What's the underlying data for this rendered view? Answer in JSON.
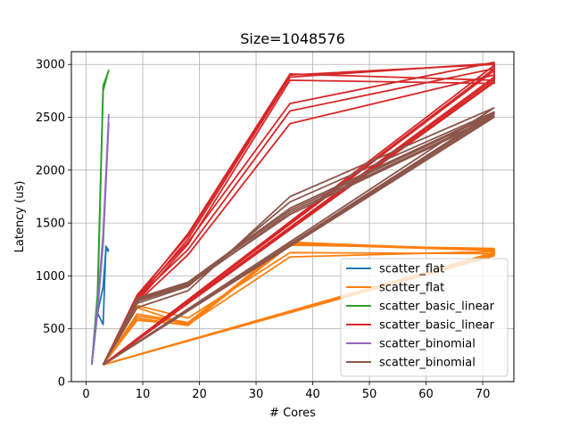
{
  "chart_data": {
    "type": "line",
    "title": "Size=1048576",
    "xlabel": "# Cores",
    "ylabel": "Latency (us)",
    "xlim": [
      -2.6,
      75.5
    ],
    "ylim": [
      0,
      3120
    ],
    "xticks": [
      0,
      10,
      20,
      30,
      40,
      50,
      60,
      70
    ],
    "yticks": [
      0,
      500,
      1000,
      1500,
      2000,
      2500,
      3000
    ],
    "grid": true,
    "legend_position": "lower-right",
    "series": [
      {
        "name": "scatter_flat",
        "color": "#1f77b4",
        "lines": [
          [
            [
              1,
              160
            ],
            [
              2,
              650
            ],
            [
              3,
              540
            ],
            [
              3.5,
              1280
            ],
            [
              4,
              1240
            ]
          ],
          [
            [
              1,
              170
            ],
            [
              2,
              640
            ],
            [
              3,
              900
            ],
            [
              3.5,
              1250
            ],
            [
              4,
              1230
            ]
          ]
        ]
      },
      {
        "name": "scatter_flat",
        "color": "#ff7f0e",
        "lines": [
          [
            [
              3,
              160
            ],
            [
              9,
              620
            ],
            [
              18,
              550
            ],
            [
              36,
              1320
            ],
            [
              72,
              1240
            ],
            [
              72,
              1220
            ],
            [
              3,
              160
            ]
          ],
          [
            [
              3,
              160
            ],
            [
              9,
              600
            ],
            [
              18,
              530
            ],
            [
              36,
              1310
            ],
            [
              72,
              1250
            ],
            [
              72,
              1210
            ],
            [
              3,
              160
            ]
          ],
          [
            [
              3,
              160
            ],
            [
              9,
              640
            ],
            [
              18,
              560
            ],
            [
              36,
              1300
            ],
            [
              72,
              1240
            ],
            [
              72,
              1200
            ],
            [
              3,
              160
            ]
          ],
          [
            [
              3,
              160
            ],
            [
              9,
              580
            ],
            [
              18,
              540
            ],
            [
              36,
              1290
            ],
            [
              72,
              1260
            ],
            [
              72,
              1220
            ],
            [
              3,
              160
            ]
          ],
          [
            [
              3,
              160
            ],
            [
              9,
              700
            ],
            [
              18,
              540
            ],
            [
              36,
              1180
            ],
            [
              72,
              1230
            ],
            [
              72,
              1210
            ],
            [
              3,
              160
            ]
          ],
          [
            [
              3,
              160
            ],
            [
              9,
              720
            ],
            [
              18,
              600
            ],
            [
              36,
              1220
            ],
            [
              72,
              1210
            ],
            [
              72,
              1190
            ],
            [
              3,
              160
            ]
          ]
        ]
      },
      {
        "name": "scatter_basic_linear",
        "color": "#2ca02c",
        "lines": [
          [
            [
              1,
              160
            ],
            [
              2,
              700
            ],
            [
              3,
              2750
            ],
            [
              4,
              2950
            ]
          ],
          [
            [
              1,
              170
            ],
            [
              2,
              820
            ],
            [
              3,
              2800
            ],
            [
              4,
              2940
            ]
          ]
        ]
      },
      {
        "name": "scatter_basic_linear",
        "color": "#d62728",
        "lines": [
          [
            [
              3,
              160
            ],
            [
              9,
              800
            ],
            [
              18,
              1400
            ],
            [
              36,
              2910
            ],
            [
              72,
              2850
            ],
            [
              72,
              2990
            ],
            [
              3,
              160
            ]
          ],
          [
            [
              3,
              160
            ],
            [
              9,
              780
            ],
            [
              18,
              1350
            ],
            [
              36,
              2880
            ],
            [
              72,
              3010
            ],
            [
              72,
              2960
            ],
            [
              3,
              160
            ]
          ],
          [
            [
              3,
              160
            ],
            [
              9,
              760
            ],
            [
              18,
              1300
            ],
            [
              36,
              2850
            ],
            [
              72,
              2820
            ],
            [
              72,
              2880
            ],
            [
              3,
              160
            ]
          ],
          [
            [
              3,
              160
            ],
            [
              9,
              820
            ],
            [
              18,
              1380
            ],
            [
              36,
              2900
            ],
            [
              72,
              3000
            ],
            [
              72,
              2840
            ],
            [
              3,
              160
            ]
          ],
          [
            [
              3,
              160
            ],
            [
              9,
              750
            ],
            [
              18,
              1200
            ],
            [
              36,
              2440
            ],
            [
              72,
              2900
            ],
            [
              72,
              2860
            ],
            [
              3,
              160
            ]
          ],
          [
            [
              3,
              160
            ],
            [
              9,
              790
            ],
            [
              18,
              1250
            ],
            [
              36,
              2560
            ],
            [
              72,
              2960
            ],
            [
              72,
              2940
            ],
            [
              3,
              160
            ]
          ],
          [
            [
              3,
              160
            ],
            [
              9,
              800
            ],
            [
              18,
              1320
            ],
            [
              36,
              2630
            ],
            [
              72,
              3020
            ],
            [
              72,
              2830
            ],
            [
              3,
              160
            ]
          ]
        ]
      },
      {
        "name": "scatter_binomial",
        "color": "#9467bd",
        "lines": [
          [
            [
              1,
              160
            ],
            [
              2,
              700
            ],
            [
              3,
              1400
            ],
            [
              4,
              2530
            ]
          ],
          [
            [
              1,
              170
            ],
            [
              2,
              650
            ],
            [
              3,
              1300
            ],
            [
              4,
              2450
            ]
          ]
        ]
      },
      {
        "name": "scatter_binomial",
        "color": "#8c564b",
        "lines": [
          [
            [
              3,
              160
            ],
            [
              9,
              780
            ],
            [
              18,
              930
            ],
            [
              36,
              1620
            ],
            [
              72,
              2530
            ],
            [
              3,
              160
            ]
          ],
          [
            [
              3,
              160
            ],
            [
              9,
              760
            ],
            [
              18,
              910
            ],
            [
              36,
              1600
            ],
            [
              72,
              2510
            ],
            [
              3,
              160
            ]
          ],
          [
            [
              3,
              160
            ],
            [
              9,
              790
            ],
            [
              18,
              940
            ],
            [
              36,
              1640
            ],
            [
              72,
              2540
            ],
            [
              3,
              160
            ]
          ],
          [
            [
              3,
              160
            ],
            [
              9,
              770
            ],
            [
              18,
              920
            ],
            [
              36,
              1580
            ],
            [
              72,
              2500
            ],
            [
              3,
              160
            ]
          ],
          [
            [
              3,
              160
            ],
            [
              9,
              700
            ],
            [
              18,
              860
            ],
            [
              36,
              1750
            ],
            [
              72,
              2590
            ],
            [
              3,
              160
            ]
          ],
          [
            [
              3,
              160
            ],
            [
              9,
              740
            ],
            [
              18,
              900
            ],
            [
              36,
              1700
            ],
            [
              72,
              2550
            ],
            [
              3,
              160
            ]
          ]
        ]
      }
    ]
  }
}
